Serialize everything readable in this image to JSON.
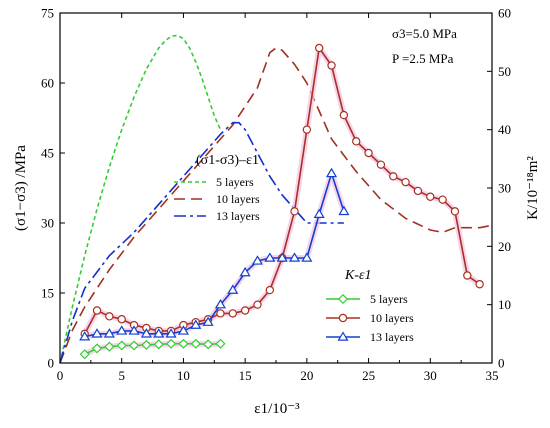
{
  "chart_data": {
    "type": "line",
    "x_axis": {
      "label": "ε1/10⁻³",
      "range": [
        0,
        35
      ],
      "ticks": [
        0,
        5,
        10,
        15,
        20,
        25,
        30,
        35
      ],
      "tick_labels": [
        "0",
        "5",
        "10",
        "15",
        "20",
        "25",
        "30",
        "35"
      ]
    },
    "y_axis_left": {
      "label": "(σ1−σ3) /MPa",
      "range": [
        0,
        75
      ],
      "ticks": [
        0,
        15,
        30,
        45,
        60,
        75
      ],
      "tick_labels": [
        "0",
        "15",
        "30",
        "45",
        "60",
        "75"
      ]
    },
    "y_axis_right": {
      "label": "K/10⁻¹⁸m²",
      "range": [
        0,
        60
      ],
      "ticks": [
        0,
        10,
        20,
        30,
        40,
        50,
        60
      ],
      "tick_labels": [
        "0",
        "10",
        "20",
        "30",
        "40",
        "50",
        "60"
      ]
    },
    "annotations": [
      "σ3=5.0 MPa",
      "P =2.5 MPa"
    ],
    "stress_legend_title": "(σ1-σ3)–ε1",
    "permeability_legend_title": "K-ε1",
    "stress_series": [
      {
        "name": "5 layers",
        "color": "#33cc33",
        "dash": "4,3",
        "x": [
          0,
          1,
          2,
          3,
          4,
          5,
          6,
          7,
          8,
          8.5,
          9,
          9.5,
          10,
          10.5,
          11,
          11.5,
          12,
          12.5,
          13
        ],
        "y": [
          0,
          12,
          23,
          33,
          42,
          50,
          57,
          63,
          67.5,
          69,
          70,
          70.2,
          69.5,
          67.5,
          64.5,
          61,
          57,
          53,
          50
        ]
      },
      {
        "name": "10 layers",
        "color": "#a03020",
        "dash": "11,6",
        "x": [
          0,
          1,
          2,
          4,
          6,
          8,
          10,
          12,
          14,
          15,
          16,
          17,
          17.5,
          18,
          19,
          20,
          21,
          22,
          24,
          26,
          28,
          30,
          31,
          32,
          33,
          34,
          35
        ],
        "y": [
          0,
          7,
          12,
          20,
          27,
          33,
          39,
          45,
          51,
          55,
          59,
          66.5,
          67.5,
          67,
          64,
          60,
          54,
          48,
          41,
          35,
          31,
          28.5,
          28,
          29,
          29,
          29,
          29.5
        ]
      },
      {
        "name": "13 layers",
        "color": "#1030d0",
        "dash": "12,4,3,4",
        "x": [
          0,
          1,
          2,
          4,
          6,
          8,
          10,
          12,
          13,
          14,
          14.5,
          15,
          16,
          17,
          18,
          19,
          20,
          21,
          22,
          23
        ],
        "y": [
          0,
          9,
          16,
          23,
          28,
          34,
          40,
          46,
          49,
          51.5,
          51.5,
          50,
          45,
          40,
          36,
          33,
          30,
          30,
          30,
          30
        ]
      }
    ],
    "permeability_series": [
      {
        "name": "5 layers",
        "color": "#33cc33",
        "marker": "diamond",
        "x": [
          2,
          3,
          4,
          5,
          6,
          7,
          8,
          9,
          10,
          11,
          12,
          13
        ],
        "y": [
          1.5,
          2.5,
          2.8,
          3.0,
          3.0,
          3.1,
          3.2,
          3.3,
          3.3,
          3.3,
          3.2,
          3.3
        ]
      },
      {
        "name": "10 layers",
        "color": "#a83020",
        "marker": "circle",
        "x": [
          2,
          3,
          4,
          5,
          6,
          7,
          8,
          9,
          10,
          11,
          12,
          13,
          14,
          15,
          16,
          17,
          18,
          19,
          20,
          21,
          22,
          23,
          24,
          25,
          26,
          27,
          28,
          29,
          30,
          31,
          32,
          33,
          34
        ],
        "y": [
          5,
          9,
          8,
          7.5,
          6.5,
          6,
          5.5,
          5.5,
          6.5,
          7,
          7.5,
          8.5,
          8.5,
          9,
          10,
          12.5,
          18,
          26,
          40,
          54,
          51,
          42.5,
          38,
          36,
          34,
          32,
          31,
          29.5,
          28.5,
          28,
          26,
          15,
          13.5
        ]
      },
      {
        "name": "13 layers",
        "color": "#1040d0",
        "marker": "triangle",
        "x": [
          2,
          3,
          4,
          5,
          6,
          7,
          8,
          9,
          10,
          11,
          12,
          13,
          14,
          15,
          16,
          17,
          18,
          19,
          20,
          21,
          22,
          23
        ],
        "y": [
          4.5,
          5,
          5,
          5.5,
          5.5,
          5,
          5,
          5,
          5.5,
          6.5,
          7,
          10,
          12.5,
          15.5,
          17.5,
          18,
          18,
          18,
          18,
          25.5,
          32.5,
          26
        ]
      }
    ]
  }
}
